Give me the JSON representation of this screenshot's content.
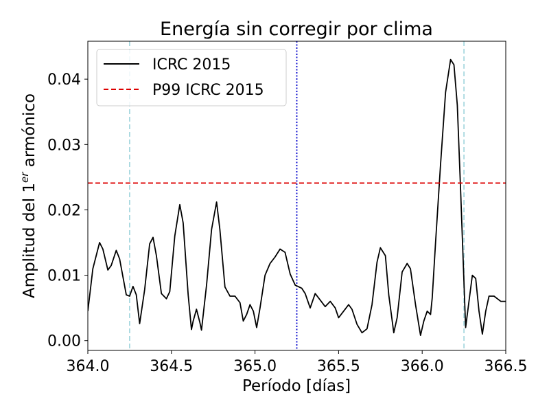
{
  "chart_data": {
    "type": "line",
    "title": "Energía sin corregir por clima",
    "xlabel": "Período [días]",
    "ylabel_main": "Amplitud del 1",
    "ylabel_sup": "er",
    "ylabel_end": " armónico",
    "xlim": [
      364.0,
      366.5
    ],
    "ylim": [
      -0.0015,
      0.0458
    ],
    "xticks": [
      364.0,
      364.5,
      365.0,
      365.5,
      366.0,
      366.5
    ],
    "xtick_labels": [
      "364.0",
      "364.5",
      "365.0",
      "365.5",
      "366.0",
      "366.5"
    ],
    "yticks": [
      0.0,
      0.01,
      0.02,
      0.03,
      0.04
    ],
    "ytick_labels": [
      "0.00",
      "0.01",
      "0.02",
      "0.03",
      "0.04"
    ],
    "legend_position": "top-left",
    "series": [
      {
        "name": "ICRC 2015",
        "color": "#000000",
        "style": "solid",
        "points": [
          [
            364.0,
            0.0045
          ],
          [
            364.03,
            0.011
          ],
          [
            364.07,
            0.015
          ],
          [
            364.09,
            0.014
          ],
          [
            364.12,
            0.0108
          ],
          [
            364.14,
            0.0115
          ],
          [
            364.17,
            0.0138
          ],
          [
            364.19,
            0.0125
          ],
          [
            364.23,
            0.007
          ],
          [
            364.25,
            0.0068
          ],
          [
            364.27,
            0.0083
          ],
          [
            364.29,
            0.007
          ],
          [
            364.31,
            0.0026
          ],
          [
            364.34,
            0.0078
          ],
          [
            364.37,
            0.0148
          ],
          [
            364.39,
            0.0158
          ],
          [
            364.41,
            0.013
          ],
          [
            364.44,
            0.0072
          ],
          [
            364.47,
            0.0064
          ],
          [
            364.49,
            0.0075
          ],
          [
            364.52,
            0.016
          ],
          [
            364.55,
            0.0208
          ],
          [
            364.57,
            0.018
          ],
          [
            364.6,
            0.007
          ],
          [
            364.62,
            0.0017
          ],
          [
            364.63,
            0.003
          ],
          [
            364.65,
            0.0048
          ],
          [
            364.67,
            0.0028
          ],
          [
            364.68,
            0.0016
          ],
          [
            364.71,
            0.0085
          ],
          [
            364.74,
            0.017
          ],
          [
            364.77,
            0.0212
          ],
          [
            364.79,
            0.017
          ],
          [
            364.82,
            0.0082
          ],
          [
            364.85,
            0.0068
          ],
          [
            364.88,
            0.0068
          ],
          [
            364.91,
            0.0058
          ],
          [
            364.93,
            0.003
          ],
          [
            364.95,
            0.004
          ],
          [
            364.97,
            0.0055
          ],
          [
            364.99,
            0.0045
          ],
          [
            365.01,
            0.002
          ],
          [
            365.03,
            0.005
          ],
          [
            365.06,
            0.01
          ],
          [
            365.09,
            0.0118
          ],
          [
            365.12,
            0.0128
          ],
          [
            365.15,
            0.014
          ],
          [
            365.18,
            0.0135
          ],
          [
            365.21,
            0.0102
          ],
          [
            365.24,
            0.0085
          ],
          [
            365.28,
            0.008
          ],
          [
            365.3,
            0.0072
          ],
          [
            365.33,
            0.005
          ],
          [
            365.36,
            0.0072
          ],
          [
            365.39,
            0.0062
          ],
          [
            365.42,
            0.0052
          ],
          [
            365.45,
            0.006
          ],
          [
            365.48,
            0.005
          ],
          [
            365.5,
            0.0035
          ],
          [
            365.53,
            0.0045
          ],
          [
            365.56,
            0.0055
          ],
          [
            365.58,
            0.0048
          ],
          [
            365.61,
            0.0025
          ],
          [
            365.64,
            0.0012
          ],
          [
            365.67,
            0.0018
          ],
          [
            365.7,
            0.0055
          ],
          [
            365.73,
            0.012
          ],
          [
            365.75,
            0.0142
          ],
          [
            365.78,
            0.013
          ],
          [
            365.8,
            0.007
          ],
          [
            365.83,
            0.0012
          ],
          [
            365.85,
            0.0035
          ],
          [
            365.88,
            0.0105
          ],
          [
            365.91,
            0.0118
          ],
          [
            365.93,
            0.011
          ],
          [
            365.96,
            0.0055
          ],
          [
            365.99,
            0.0008
          ],
          [
            366.01,
            0.003
          ],
          [
            366.03,
            0.0045
          ],
          [
            366.05,
            0.004
          ],
          [
            366.06,
            0.0065
          ],
          [
            366.08,
            0.015
          ],
          [
            366.11,
            0.027
          ],
          [
            366.14,
            0.038
          ],
          [
            366.17,
            0.043
          ],
          [
            366.19,
            0.0422
          ],
          [
            366.21,
            0.036
          ],
          [
            366.23,
            0.023
          ],
          [
            366.26,
            0.002
          ],
          [
            366.28,
            0.006
          ],
          [
            366.3,
            0.01
          ],
          [
            366.32,
            0.0095
          ],
          [
            366.34,
            0.0045
          ],
          [
            366.36,
            0.001
          ],
          [
            366.38,
            0.0045
          ],
          [
            366.4,
            0.0068
          ],
          [
            366.43,
            0.0068
          ],
          [
            366.47,
            0.006
          ],
          [
            366.5,
            0.006
          ]
        ]
      },
      {
        "name": "P99 ICRC 2015",
        "color": "#dd0000",
        "style": "dashed",
        "y": 0.0241
      }
    ],
    "vlines": [
      {
        "x": 364.25,
        "color": "#a8d8e0",
        "style": "dashed"
      },
      {
        "x": 365.25,
        "color": "#0000cc",
        "style": "dotted"
      },
      {
        "x": 366.25,
        "color": "#a8d8e0",
        "style": "dashed"
      }
    ]
  }
}
